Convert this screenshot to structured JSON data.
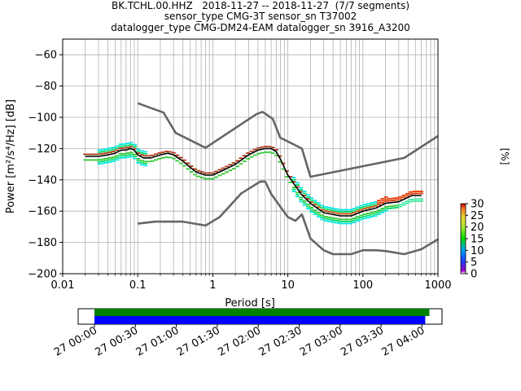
{
  "header": {
    "title_line1": "BK.TCHL.00.HHZ   2018-11-27 -- 2018-11-27  (7/7 segments)",
    "title_line2": "sensor_type CMG-3T sensor_sn T37002",
    "title_line3": "datalogger_type CMG-DM24-EAM datalogger_sn 3916_A3200"
  },
  "chart_data": [
    {
      "type": "heatmap",
      "subtype": "probabilistic-power-spectral-density",
      "xlabel": "Period [s]",
      "ylabel": "Power [m²/s⁴/Hz] [dB]",
      "x_scale": "log",
      "xlim": [
        0.01,
        1000
      ],
      "ylim": [
        -200,
        -50
      ],
      "x_ticks": [
        0.01,
        0.1,
        1,
        10,
        100,
        1000
      ],
      "x_tick_labels": [
        "0.01",
        "0.1",
        "1",
        "10",
        "100",
        "1000"
      ],
      "y_ticks": [
        -200,
        -180,
        -160,
        -140,
        -120,
        -100,
        -80,
        -60
      ],
      "y_tick_labels": [
        "−200",
        "−180",
        "−160",
        "−140",
        "−120",
        "−100",
        "−80",
        "−60"
      ],
      "grid": true,
      "colorbar": {
        "label": "[%]",
        "range": [
          0,
          30
        ],
        "ticks": [
          0,
          5,
          10,
          15,
          20,
          25,
          30
        ],
        "tick_labels": [
          "0",
          "5",
          "10",
          "15",
          "20",
          "25",
          "30"
        ]
      },
      "psd_mean": [
        [
          0.02,
          -125
        ],
        [
          0.03,
          -125
        ],
        [
          0.04,
          -124
        ],
        [
          0.05,
          -123
        ],
        [
          0.06,
          -121
        ],
        [
          0.07,
          -121
        ],
        [
          0.08,
          -120
        ],
        [
          0.09,
          -121
        ],
        [
          0.1,
          -124
        ],
        [
          0.12,
          -126
        ],
        [
          0.15,
          -126
        ],
        [
          0.2,
          -124
        ],
        [
          0.25,
          -123
        ],
        [
          0.3,
          -124
        ],
        [
          0.4,
          -128
        ],
        [
          0.5,
          -132
        ],
        [
          0.6,
          -135
        ],
        [
          0.8,
          -137
        ],
        [
          1,
          -137
        ],
        [
          1.5,
          -133
        ],
        [
          2,
          -130
        ],
        [
          3,
          -124
        ],
        [
          4,
          -121
        ],
        [
          5,
          -120
        ],
        [
          6,
          -120
        ],
        [
          7,
          -122
        ],
        [
          8,
          -127
        ],
        [
          10,
          -137
        ],
        [
          15,
          -149
        ],
        [
          20,
          -155
        ],
        [
          30,
          -161
        ],
        [
          50,
          -163
        ],
        [
          70,
          -163
        ],
        [
          100,
          -160
        ],
        [
          150,
          -158
        ],
        [
          200,
          -155
        ],
        [
          300,
          -154
        ],
        [
          450,
          -150
        ],
        [
          600,
          -150
        ]
      ],
      "noise_models": [
        {
          "name": "high-noise-model",
          "points": [
            [
              0.1,
              -91
            ],
            [
              0.22,
              -97
            ],
            [
              0.32,
              -110
            ],
            [
              0.8,
              -119.5
            ],
            [
              3.8,
              -98
            ],
            [
              4.6,
              -96.5
            ],
            [
              6.3,
              -101
            ],
            [
              7.9,
              -113
            ],
            [
              15.4,
              -120
            ],
            [
              20,
              -138
            ],
            [
              354.8,
              -126
            ],
            [
              1000,
              -112
            ]
          ]
        },
        {
          "name": "low-noise-model",
          "points": [
            [
              0.1,
              -168
            ],
            [
              0.17,
              -166.7
            ],
            [
              0.4,
              -166.7
            ],
            [
              0.8,
              -169.2
            ],
            [
              1.24,
              -163.7
            ],
            [
              2.4,
              -148.6
            ],
            [
              4.3,
              -141.1
            ],
            [
              5,
              -141.1
            ],
            [
              6,
              -149
            ],
            [
              10,
              -163.8
            ],
            [
              12.6,
              -166.2
            ],
            [
              15.4,
              -162.1
            ],
            [
              20,
              -177.5
            ],
            [
              30,
              -185
            ],
            [
              40,
              -187.5
            ],
            [
              70,
              -187.5
            ],
            [
              100,
              -185
            ],
            [
              150,
              -185
            ],
            [
              200,
              -185.5
            ],
            [
              354.8,
              -187.5
            ],
            [
              600,
              -184.4
            ],
            [
              1000,
              -178
            ]
          ]
        }
      ]
    },
    {
      "type": "timeline",
      "x_tick_labels": [
        "27 00:00",
        "27 00:30",
        "27 01:00",
        "27 01:30",
        "27 02:00",
        "27 02:30",
        "27 03:00",
        "27 03:30",
        "27 04:00"
      ],
      "xlim": [
        "2018-11-27 00:00",
        "2018-11-27 04:24"
      ],
      "bars": [
        {
          "row": "top",
          "color": "#008000",
          "start": "2018-11-27 00:00",
          "end": "2018-11-27 04:03"
        },
        {
          "row": "bottom",
          "color": "#0000ff",
          "start": "2018-11-27 00:00",
          "end": "2018-11-27 04:00"
        }
      ]
    }
  ]
}
